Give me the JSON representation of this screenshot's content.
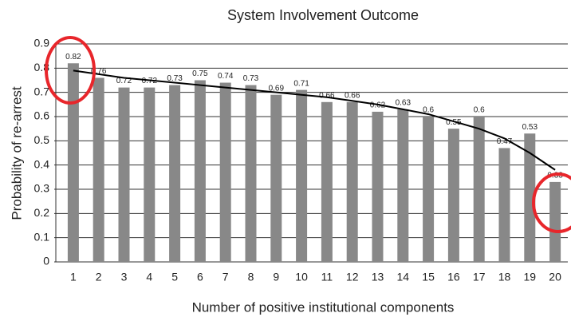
{
  "chart_data": {
    "type": "bar",
    "title": "System Involvement Outcome",
    "x_label": "Number of positive institutional components",
    "y_label": "Probability of re-arrest",
    "categories": [
      "1",
      "2",
      "3",
      "4",
      "5",
      "6",
      "7",
      "8",
      "9",
      "10",
      "11",
      "12",
      "13",
      "14",
      "15",
      "16",
      "17",
      "18",
      "19",
      "20"
    ],
    "values": [
      0.82,
      0.76,
      0.72,
      0.72,
      0.73,
      0.75,
      0.74,
      0.73,
      0.69,
      0.71,
      0.66,
      0.66,
      0.62,
      0.63,
      0.6,
      0.55,
      0.6,
      0.47,
      0.53,
      0.33
    ],
    "color": "#888888",
    "trendline": {
      "color": "#000000",
      "values": [
        0.79,
        0.775,
        0.76,
        0.75,
        0.74,
        0.73,
        0.72,
        0.71,
        0.7,
        0.69,
        0.68,
        0.665,
        0.65,
        0.63,
        0.61,
        0.58,
        0.55,
        0.51,
        0.45,
        0.38
      ]
    },
    "ylim": [
      0,
      0.9
    ],
    "yticks": [
      0,
      0.1,
      0.2,
      0.3,
      0.4,
      0.5,
      0.6,
      0.7,
      0.8,
      0.9
    ],
    "grid": true
  }
}
